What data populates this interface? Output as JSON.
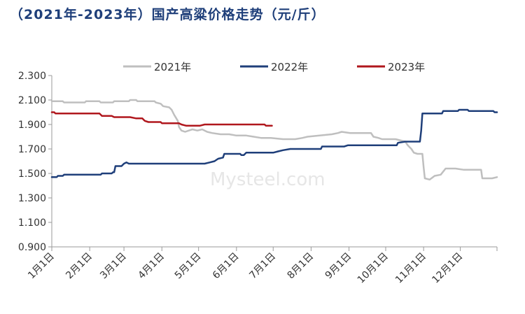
{
  "chart_data": {
    "type": "line",
    "title": "（2021年-2023年）国产高粱价格走势（元/斤）",
    "xlabel": "",
    "ylabel": "",
    "ylim": [
      0.9,
      2.3
    ],
    "yticks": [
      "0.900",
      "1.100",
      "1.300",
      "1.500",
      "1.700",
      "1.900",
      "2.100",
      "2.300"
    ],
    "x_domain_days": [
      1,
      365
    ],
    "categories": [
      "1月1日",
      "2月1日",
      "3月1日",
      "4月1日",
      "5月1日",
      "6月1日",
      "7月1日",
      "8月1日",
      "9月1日",
      "10月1日",
      "11月1日",
      "12月1日"
    ],
    "category_days": [
      1,
      32,
      60,
      91,
      121,
      152,
      182,
      213,
      244,
      274,
      305,
      335
    ],
    "grid": false,
    "legend_position": "top",
    "watermark": "Mysteel.com",
    "series": [
      {
        "name": "2021年",
        "color": "#bfbfbf",
        "points": [
          [
            1,
            2.09
          ],
          [
            10,
            2.09
          ],
          [
            11,
            2.08
          ],
          [
            28,
            2.08
          ],
          [
            29,
            2.09
          ],
          [
            40,
            2.09
          ],
          [
            41,
            2.08
          ],
          [
            51,
            2.08
          ],
          [
            52,
            2.09
          ],
          [
            64,
            2.09
          ],
          [
            65,
            2.1
          ],
          [
            70,
            2.1
          ],
          [
            71,
            2.09
          ],
          [
            85,
            2.09
          ],
          [
            86,
            2.08
          ],
          [
            90,
            2.07
          ],
          [
            92,
            2.05
          ],
          [
            97,
            2.04
          ],
          [
            99,
            2.02
          ],
          [
            101,
            1.98
          ],
          [
            104,
            1.93
          ],
          [
            105,
            1.88
          ],
          [
            107,
            1.85
          ],
          [
            110,
            1.84
          ],
          [
            113,
            1.85
          ],
          [
            116,
            1.86
          ],
          [
            120,
            1.85
          ],
          [
            124,
            1.86
          ],
          [
            128,
            1.84
          ],
          [
            132,
            1.83
          ],
          [
            139,
            1.82
          ],
          [
            146,
            1.82
          ],
          [
            152,
            1.81
          ],
          [
            160,
            1.81
          ],
          [
            166,
            1.8
          ],
          [
            172,
            1.79
          ],
          [
            180,
            1.79
          ],
          [
            190,
            1.78
          ],
          [
            200,
            1.78
          ],
          [
            206,
            1.79
          ],
          [
            210,
            1.8
          ],
          [
            220,
            1.81
          ],
          [
            230,
            1.82
          ],
          [
            235,
            1.83
          ],
          [
            238,
            1.84
          ],
          [
            245,
            1.83
          ],
          [
            262,
            1.83
          ],
          [
            264,
            1.8
          ],
          [
            268,
            1.79
          ],
          [
            271,
            1.78
          ],
          [
            282,
            1.78
          ],
          [
            290,
            1.76
          ],
          [
            292,
            1.73
          ],
          [
            295,
            1.7
          ],
          [
            297,
            1.67
          ],
          [
            300,
            1.66
          ],
          [
            304,
            1.66
          ],
          [
            305,
            1.55
          ],
          [
            306,
            1.46
          ],
          [
            310,
            1.45
          ],
          [
            314,
            1.48
          ],
          [
            319,
            1.49
          ],
          [
            323,
            1.54
          ],
          [
            331,
            1.54
          ],
          [
            338,
            1.53
          ],
          [
            352,
            1.53
          ],
          [
            353,
            1.46
          ],
          [
            357,
            1.46
          ],
          [
            361,
            1.46
          ],
          [
            365,
            1.47
          ]
        ]
      },
      {
        "name": "2022年",
        "color": "#1f3f7a",
        "points": [
          [
            1,
            1.47
          ],
          [
            5,
            1.47
          ],
          [
            6,
            1.48
          ],
          [
            10,
            1.48
          ],
          [
            11,
            1.49
          ],
          [
            41,
            1.49
          ],
          [
            42,
            1.5
          ],
          [
            50,
            1.5
          ],
          [
            51,
            1.51
          ],
          [
            52,
            1.51
          ],
          [
            53,
            1.56
          ],
          [
            58,
            1.56
          ],
          [
            60,
            1.58
          ],
          [
            62,
            1.59
          ],
          [
            64,
            1.58
          ],
          [
            126,
            1.58
          ],
          [
            130,
            1.59
          ],
          [
            134,
            1.6
          ],
          [
            137,
            1.62
          ],
          [
            141,
            1.63
          ],
          [
            142,
            1.66
          ],
          [
            155,
            1.66
          ],
          [
            156,
            1.65
          ],
          [
            158,
            1.65
          ],
          [
            160,
            1.67
          ],
          [
            182,
            1.67
          ],
          [
            186,
            1.68
          ],
          [
            190,
            1.69
          ],
          [
            196,
            1.7
          ],
          [
            221,
            1.7
          ],
          [
            222,
            1.72
          ],
          [
            240,
            1.72
          ],
          [
            243,
            1.73
          ],
          [
            283,
            1.73
          ],
          [
            284,
            1.75
          ],
          [
            290,
            1.76
          ],
          [
            302,
            1.76
          ],
          [
            303,
            1.85
          ],
          [
            304,
            1.99
          ],
          [
            320,
            1.99
          ],
          [
            321,
            2.01
          ],
          [
            333,
            2.01
          ],
          [
            334,
            2.02
          ],
          [
            341,
            2.02
          ],
          [
            342,
            2.01
          ],
          [
            362,
            2.01
          ],
          [
            363,
            2.0
          ],
          [
            365,
            2.0
          ]
        ]
      },
      {
        "name": "2023年",
        "color": "#b0171d",
        "points": [
          [
            1,
            2.0
          ],
          [
            3,
            2.0
          ],
          [
            4,
            1.99
          ],
          [
            40,
            1.99
          ],
          [
            41,
            1.98
          ],
          [
            42,
            1.97
          ],
          [
            50,
            1.97
          ],
          [
            52,
            1.96
          ],
          [
            65,
            1.96
          ],
          [
            70,
            1.95
          ],
          [
            75,
            1.95
          ],
          [
            76,
            1.94
          ],
          [
            77,
            1.93
          ],
          [
            80,
            1.92
          ],
          [
            90,
            1.92
          ],
          [
            91,
            1.91
          ],
          [
            105,
            1.91
          ],
          [
            107,
            1.9
          ],
          [
            111,
            1.89
          ],
          [
            122,
            1.89
          ],
          [
            126,
            1.9
          ],
          [
            175,
            1.9
          ],
          [
            176,
            1.89
          ],
          [
            181,
            1.89
          ]
        ]
      }
    ]
  }
}
